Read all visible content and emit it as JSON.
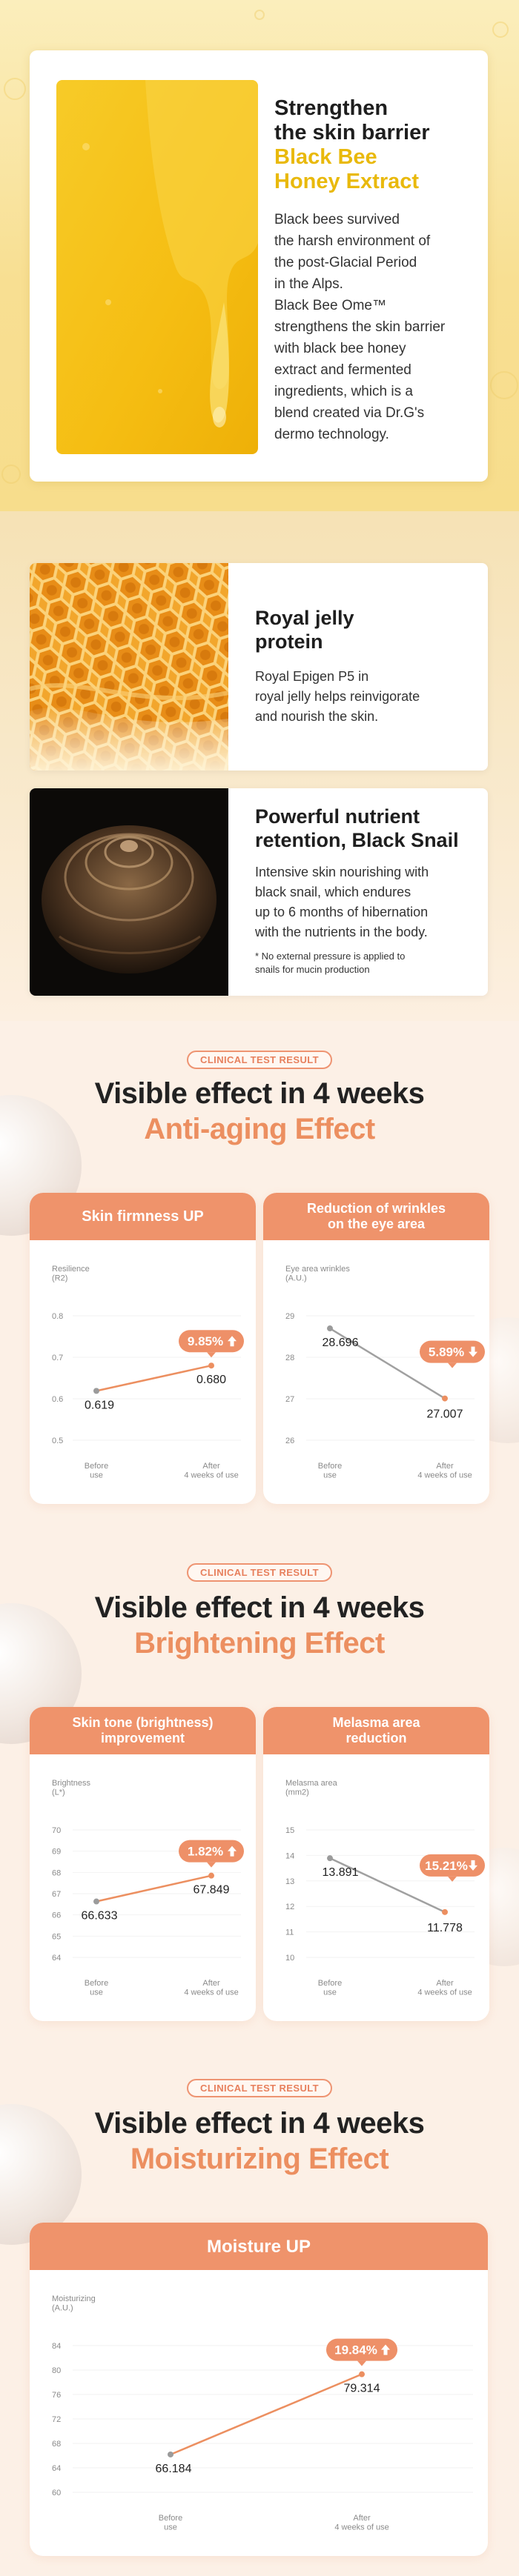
{
  "honey": {
    "title": "Strengthen\nthe skin barrier",
    "subtitle": "Black Bee\nHoney Extract",
    "body": "Black bees survived\nthe harsh environment of\nthe post-Glacial Period\nin the Alps.\nBlack Bee  Ome™\nstrengthens the skin barrier\nwith black bee honey\nextract and fermented\ningredients, which is a\nblend created via Dr.G's\ndermo technology.",
    "image_icon": "honey-drip-image"
  },
  "royal_jelly": {
    "title": "Royal jelly\nprotein",
    "body": "Royal Epigen P5 in\nroyal jelly helps reinvigorate\nand nourish the skin.",
    "image_icon": "honeycomb-image"
  },
  "snail": {
    "title": "Powerful nutrient\nretention, Black Snail",
    "body": "Intensive skin nourishing with\nblack snail, which endures\nup to 6 months of hibernation\nwith the nutrients in the body.",
    "note": "* No external pressure is applied to\nsnails for mucin production",
    "image_icon": "snail-shell-image"
  },
  "sections": [
    {
      "badge": "CLINICAL TEST RESULT",
      "title": "Visible effect in 4 weeks",
      "subtitle": "Anti-aging Effect"
    },
    {
      "badge": "CLINICAL TEST RESULT",
      "title": "Visible effect in 4 weeks",
      "subtitle": "Brightening Effect"
    },
    {
      "badge": "CLINICAL TEST RESULT",
      "title": "Visible effect in 4 weeks",
      "subtitle": "Moisturizing Effect"
    }
  ],
  "colors": {
    "accent": "#ef936b",
    "honey_yellow": "#e9b90c",
    "line_after": "#ec8f60",
    "line_before": "#a0a0a0"
  },
  "chart_data": [
    {
      "type": "line",
      "title": "Skin firmness UP",
      "ylabel": "Resilience\n(R2)",
      "yticks": [
        "0.8",
        "0.7",
        "0.6",
        "0.5"
      ],
      "ylim": [
        0.5,
        0.8
      ],
      "categories": [
        "Before\nuse",
        "After\n4 weeks of use"
      ],
      "values": [
        0.619,
        0.68
      ],
      "value_labels": [
        "0.619",
        "0.680"
      ],
      "change_label": "9.85%",
      "direction": "up",
      "line_color": "#ec8f60"
    },
    {
      "type": "line",
      "title": "Reduction of wrinkles\non the eye area",
      "ylabel": "Eye area wrinkles\n(A.U.)",
      "yticks": [
        "29",
        "28",
        "27",
        "26"
      ],
      "ylim": [
        26,
        29
      ],
      "categories": [
        "Before\nuse",
        "After\n4 weeks of use"
      ],
      "values": [
        28.696,
        27.007
      ],
      "value_labels": [
        "28.696",
        "27.007"
      ],
      "change_label": "5.89%",
      "direction": "down",
      "line_color": "#a0a0a0"
    },
    {
      "type": "line",
      "title": "Skin tone (brightness)\nimprovement",
      "ylabel": "Brightness\n(L*)",
      "yticks": [
        "70",
        "69",
        "68",
        "67",
        "66",
        "65",
        "64"
      ],
      "ylim": [
        64,
        70
      ],
      "categories": [
        "Before\nuse",
        "After\n4 weeks of use"
      ],
      "values": [
        66.633,
        67.849
      ],
      "value_labels": [
        "66.633",
        "67.849"
      ],
      "change_label": "1.82%",
      "direction": "up",
      "line_color": "#ec8f60"
    },
    {
      "type": "line",
      "title": "Melasma area\nreduction",
      "ylabel": "Melasma area\n(mm2)",
      "yticks": [
        "15",
        "14",
        "13",
        "12",
        "11",
        "10"
      ],
      "ylim": [
        10,
        15
      ],
      "categories": [
        "Before\nuse",
        "After\n4 weeks of use"
      ],
      "values": [
        13.891,
        11.778
      ],
      "value_labels": [
        "13.891",
        "11.778"
      ],
      "change_label": "15.21%",
      "direction": "down",
      "line_color": "#a0a0a0"
    },
    {
      "type": "line",
      "title": "Moisture UP",
      "ylabel": "Moisturizing\n(A.U.)",
      "yticks": [
        "84",
        "80",
        "76",
        "72",
        "68",
        "64",
        "60"
      ],
      "ylim": [
        60,
        84
      ],
      "categories": [
        "Before\nuse",
        "After\n4 weeks of use"
      ],
      "values": [
        66.184,
        79.314
      ],
      "value_labels": [
        "66.184",
        "79.314"
      ],
      "change_label": "19.84%",
      "direction": "up",
      "line_color": "#ec8f60"
    }
  ]
}
